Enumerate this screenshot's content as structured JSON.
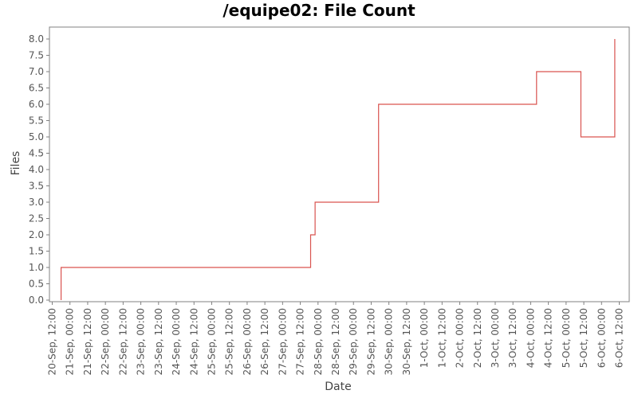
{
  "chart_data": {
    "type": "line",
    "step": true,
    "title": "/equipe02: File Count",
    "xlabel": "Date",
    "ylabel": "Files",
    "ylim": [
      0,
      8.0
    ],
    "yticks": [
      "0.0",
      "0.5",
      "1.0",
      "1.5",
      "2.0",
      "2.5",
      "3.0",
      "3.5",
      "4.0",
      "4.5",
      "5.0",
      "5.5",
      "6.0",
      "6.5",
      "7.0",
      "7.5",
      "8.0"
    ],
    "xticks": [
      "20-Sep, 12:00",
      "21-Sep, 00:00",
      "21-Sep, 12:00",
      "22-Sep, 00:00",
      "22-Sep, 12:00",
      "23-Sep, 00:00",
      "23-Sep, 12:00",
      "24-Sep, 00:00",
      "24-Sep, 12:00",
      "25-Sep, 00:00",
      "25-Sep, 12:00",
      "26-Sep, 00:00",
      "26-Sep, 12:00",
      "27-Sep, 00:00",
      "27-Sep, 12:00",
      "28-Sep, 00:00",
      "28-Sep, 12:00",
      "29-Sep, 00:00",
      "29-Sep, 12:00",
      "30-Sep, 00:00",
      "30-Sep, 12:00",
      "1-Oct, 00:00",
      "1-Oct, 12:00",
      "2-Oct, 00:00",
      "2-Oct, 12:00",
      "3-Oct, 00:00",
      "3-Oct, 12:00",
      "4-Oct, 00:00",
      "4-Oct, 12:00",
      "5-Oct, 00:00",
      "5-Oct, 12:00",
      "6-Oct, 00:00",
      "6-Oct, 12:00"
    ],
    "series": [
      {
        "color": "#d9534f",
        "points": [
          {
            "x": "20-Sep, 18:00",
            "y": 0
          },
          {
            "x": "20-Sep, 18:00",
            "y": 1
          },
          {
            "x": "27-Sep, 19:00",
            "y": 1
          },
          {
            "x": "27-Sep, 19:00",
            "y": 2
          },
          {
            "x": "27-Sep, 22:00",
            "y": 2
          },
          {
            "x": "27-Sep, 22:00",
            "y": 3
          },
          {
            "x": "29-Sep, 17:00",
            "y": 3
          },
          {
            "x": "29-Sep, 17:00",
            "y": 6
          },
          {
            "x": "4-Oct, 04:00",
            "y": 6
          },
          {
            "x": "4-Oct, 04:00",
            "y": 7
          },
          {
            "x": "5-Oct, 10:00",
            "y": 7
          },
          {
            "x": "5-Oct, 10:00",
            "y": 5
          },
          {
            "x": "6-Oct, 09:00",
            "y": 5
          },
          {
            "x": "6-Oct, 09:00",
            "y": 8
          }
        ]
      }
    ],
    "grid": false,
    "legend": "none"
  }
}
